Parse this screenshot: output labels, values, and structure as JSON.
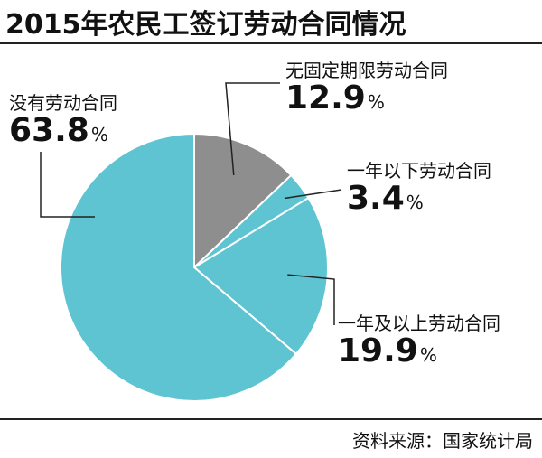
{
  "title": "2015年农民工签订劳动合同情况",
  "source": "资料来源：国家统计局",
  "colors": {
    "gray": "#8e8e8e",
    "teal": "#5ec4d1",
    "stroke": "#ffffff",
    "leader": "#222222"
  },
  "chart_data": {
    "type": "pie",
    "title": "2015年农民工签订劳动合同情况",
    "unit": "%",
    "slices": [
      {
        "label": "无固定期限劳动合同",
        "value": 12.9,
        "color": "#8e8e8e"
      },
      {
        "label": "一年以下劳动合同",
        "value": 3.4,
        "color": "#5ec4d1"
      },
      {
        "label": "一年及以上劳动合同",
        "value": 19.9,
        "color": "#5ec4d1"
      },
      {
        "label": "没有劳动合同",
        "value": 63.8,
        "color": "#5ec4d1"
      }
    ]
  }
}
